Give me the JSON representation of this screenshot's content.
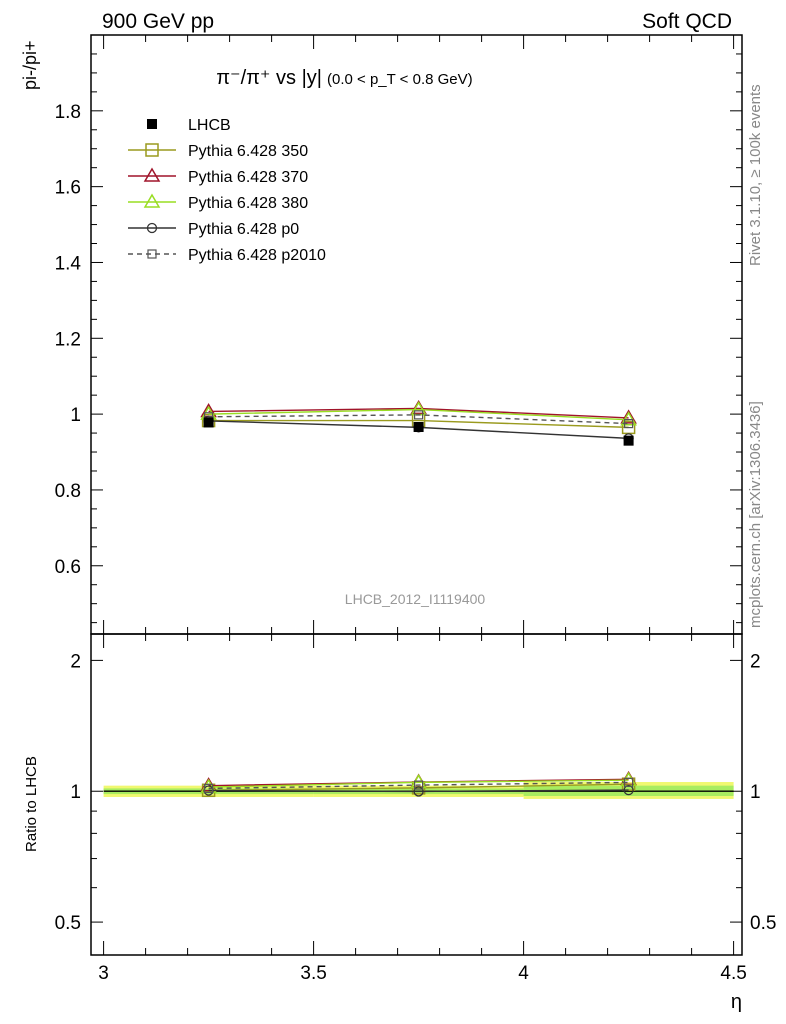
{
  "header": {
    "left": "900 GeV pp",
    "right": "Soft QCD"
  },
  "side_labels": {
    "rivet": "Rivet 3.1.10, ≥ 100k events",
    "mcplots": "mcplots.cern.ch [arXiv:1306.3436]"
  },
  "colors": {
    "lhcb": "#000000",
    "p350": "#9a9a1e",
    "p370": "#a0142a",
    "p380": "#99dd22",
    "p0": "#333333",
    "p2010": "#555555",
    "band_outer": "#f0f870",
    "band_inner": "#a8ec60"
  },
  "chart_data": [
    {
      "type": "line",
      "title": "π⁻/π⁺ vs |y|",
      "title_note": "(0.0 < p_T < 0.8 GeV)",
      "ylabel": "pi-/pi+",
      "analysis_tag": "LHCB_2012_I1119400",
      "ylim": [
        0.42,
        2.0
      ],
      "yticks": [
        0.6,
        0.8,
        1.0,
        1.2,
        1.4,
        1.6,
        1.8
      ],
      "ytick_labels": [
        "0.6",
        "0.8",
        "1",
        "1.2",
        "1.4",
        "1.6",
        "1.8"
      ],
      "xlim": [
        2.97,
        4.52
      ],
      "x": [
        3.25,
        3.75,
        4.25
      ],
      "legend_position": "top-left",
      "series": [
        {
          "name": "LHCB",
          "values": [
            0.978,
            0.966,
            0.93
          ],
          "color": "#000000",
          "marker": "filled-square",
          "line": "none"
        },
        {
          "name": "Pythia 6.428 350",
          "values": [
            0.983,
            0.983,
            0.965
          ],
          "color": "#9a9a1e",
          "marker": "open-square",
          "line": "solid"
        },
        {
          "name": "Pythia 6.428 370",
          "values": [
            1.007,
            1.015,
            0.99
          ],
          "color": "#a0142a",
          "marker": "open-triangle",
          "line": "solid"
        },
        {
          "name": "Pythia 6.428 380",
          "values": [
            1.0,
            1.012,
            0.985
          ],
          "color": "#99dd22",
          "marker": "open-triangle",
          "line": "solid"
        },
        {
          "name": "Pythia 6.428 p0",
          "values": [
            0.982,
            0.965,
            0.936
          ],
          "color": "#333333",
          "marker": "open-circle",
          "line": "solid"
        },
        {
          "name": "Pythia 6.428 p2010",
          "values": [
            0.993,
            0.998,
            0.975
          ],
          "color": "#555555",
          "marker": "open-square-small",
          "line": "dashed"
        }
      ]
    },
    {
      "type": "line",
      "ylabel": "Ratio to LHCB",
      "xlabel": "η",
      "ylim": [
        0.42,
        2.3
      ],
      "yticks": [
        0.5,
        1.0,
        2.0
      ],
      "ytick_labels": [
        "0.5",
        "1",
        "2"
      ],
      "xlim": [
        2.97,
        4.52
      ],
      "xticks": [
        3.0,
        3.5,
        4.0,
        4.5
      ],
      "xtick_labels": [
        "3",
        "3.5",
        "4",
        "4.5"
      ],
      "x": [
        3.25,
        3.75,
        4.25
      ],
      "reference_band": {
        "x": [
          3.0,
          4.5
        ],
        "outer": [
          [
            0.97,
            1.03
          ],
          [
            0.97,
            1.03
          ],
          [
            0.96,
            1.05
          ]
        ],
        "inner": [
          [
            0.985,
            1.015
          ],
          [
            0.985,
            1.015
          ],
          [
            0.975,
            1.03
          ]
        ]
      },
      "series": [
        {
          "name": "Pythia 6.428 350",
          "values": [
            1.005,
            1.018,
            1.038
          ]
        },
        {
          "name": "Pythia 6.428 370",
          "values": [
            1.03,
            1.05,
            1.065
          ]
        },
        {
          "name": "Pythia 6.428 380",
          "values": [
            1.022,
            1.048,
            1.06
          ]
        },
        {
          "name": "Pythia 6.428 p0",
          "values": [
            1.004,
            0.999,
            1.006
          ]
        },
        {
          "name": "Pythia 6.428 p2010",
          "values": [
            1.015,
            1.033,
            1.048
          ]
        }
      ]
    }
  ]
}
